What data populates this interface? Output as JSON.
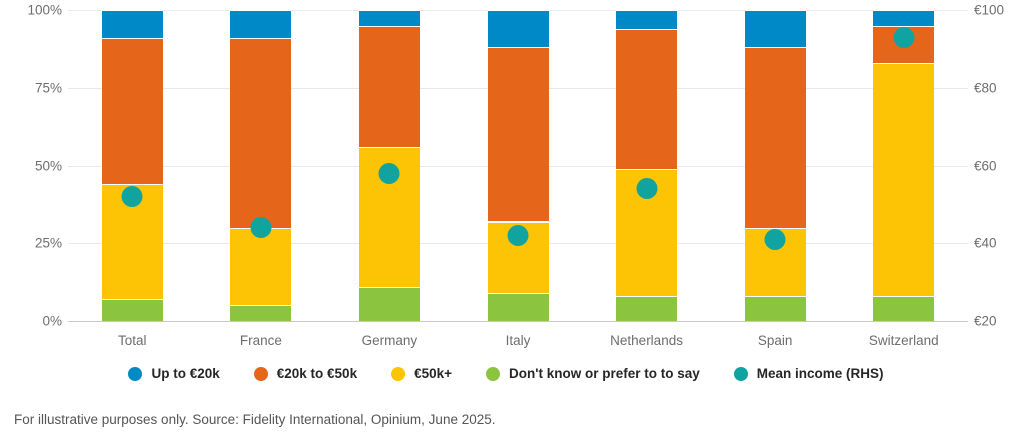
{
  "chart_data": {
    "type": "bar",
    "subtype": "stacked-100-percent-columns-with-mean-dots",
    "categories": [
      "Total",
      "France",
      "Germany",
      "Italy",
      "Netherlands",
      "Spain",
      "Switzerland"
    ],
    "series": [
      {
        "name": "Up to €20k",
        "color": "#0089c7",
        "values": [
          9,
          9,
          5,
          12,
          6,
          12,
          5
        ]
      },
      {
        "name": "€20k to €50k",
        "color": "#e5651a",
        "values": [
          47,
          61,
          39,
          56,
          45,
          58,
          12
        ]
      },
      {
        "name": "€50k+",
        "color": "#fdc305",
        "values": [
          37,
          25,
          45,
          23,
          41,
          22,
          75
        ]
      },
      {
        "name": "Don't know or prefer to to say",
        "color": "#8bc540",
        "values": [
          7,
          5,
          11,
          9,
          8,
          8,
          8
        ]
      }
    ],
    "stack_order_bottom_to_top": [
      "Don't know or prefer to to say",
      "€50k+",
      "€20k to €50k",
      "Up to €20k"
    ],
    "mean_series": {
      "name": "Mean income (RHS)",
      "color": "#11a3a0",
      "values": [
        52,
        44,
        58,
        42,
        54,
        41,
        93
      ]
    },
    "left_axis": {
      "min": 0,
      "max": 100,
      "ticks": [
        {
          "label": "100%",
          "value": 100
        },
        {
          "label": "75%",
          "value": 75
        },
        {
          "label": "50%",
          "value": 50
        },
        {
          "label": "25%",
          "value": 25
        },
        {
          "label": "0%",
          "value": 0
        }
      ]
    },
    "right_axis": {
      "min": 20,
      "max": 100,
      "ticks": [
        {
          "label": "€100",
          "value": 100
        },
        {
          "label": "€80",
          "value": 80
        },
        {
          "label": "€60",
          "value": 60
        },
        {
          "label": "€40",
          "value": 40
        },
        {
          "label": "€20",
          "value": 20
        }
      ]
    },
    "grid": true,
    "legend_position": "bottom"
  },
  "footnote": "For illustrative purposes only. Source: Fidelity International, Opinium, June 2025."
}
